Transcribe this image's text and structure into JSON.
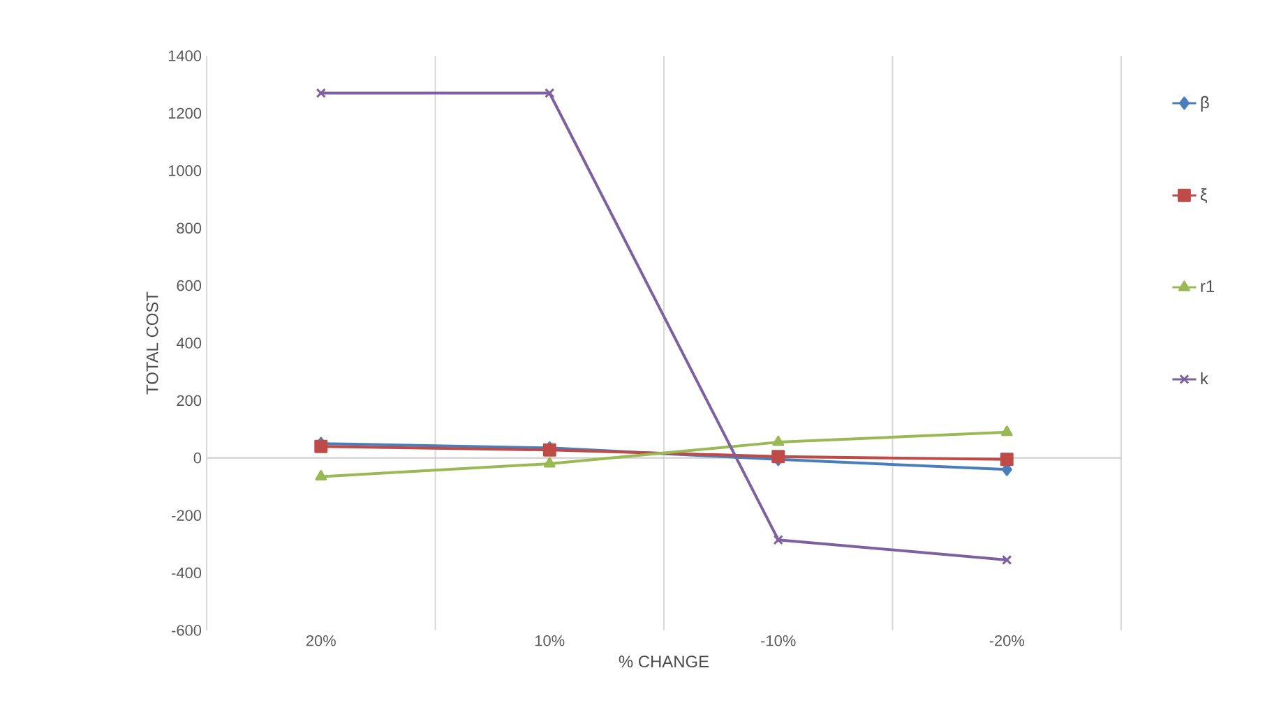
{
  "chart_data": {
    "type": "line",
    "xlabel": "% CHANGE",
    "ylabel": "TOTAL COST",
    "categories": [
      "20%",
      "10%",
      "-10%",
      "-20%"
    ],
    "series": [
      {
        "name": "β",
        "color": "#4a7ebb",
        "marker": "diamond",
        "values": [
          50,
          35,
          -5,
          -40
        ]
      },
      {
        "name": "ξ",
        "color": "#be4b48",
        "marker": "square",
        "values": [
          40,
          28,
          5,
          -5
        ]
      },
      {
        "name": "r1",
        "color": "#98b954",
        "marker": "triangle",
        "values": [
          -65,
          -20,
          55,
          90
        ]
      },
      {
        "name": "k",
        "color": "#7d60a0",
        "marker": "cross",
        "values": [
          1270,
          1270,
          -285,
          -355
        ]
      }
    ],
    "ylim": [
      -600,
      1400
    ],
    "yticks": [
      -600,
      -400,
      -200,
      0,
      200,
      400,
      600,
      800,
      1000,
      1200,
      1400
    ],
    "grid": "x",
    "legend": "right",
    "line_style": "solid"
  }
}
